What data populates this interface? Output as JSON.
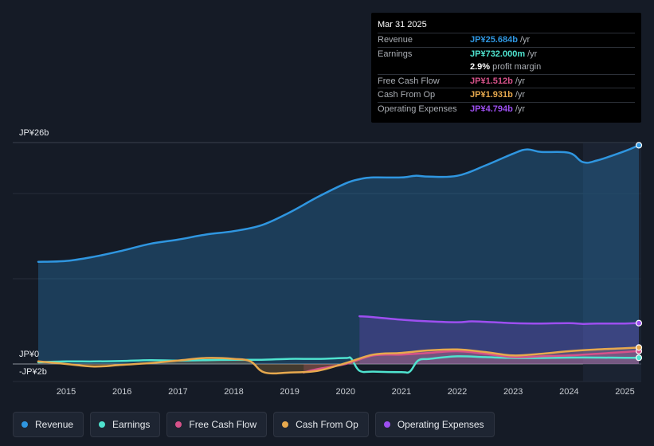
{
  "tooltip": {
    "date": "Mar 31 2025",
    "rows": [
      {
        "label": "Revenue",
        "value": "JP¥25.684b",
        "unit": "/yr",
        "color": "#2f96e0"
      },
      {
        "label": "Earnings",
        "value": "JP¥732.000m",
        "unit": "/yr",
        "color": "#4fe3cf"
      },
      {
        "label": "",
        "value": "2.9%",
        "unit": "profit margin",
        "color": "#ffffff"
      },
      {
        "label": "Free Cash Flow",
        "value": "JP¥1.512b",
        "unit": "/yr",
        "color": "#d6528a"
      },
      {
        "label": "Cash From Op",
        "value": "JP¥1.931b",
        "unit": "/yr",
        "color": "#e7a94e"
      },
      {
        "label": "Operating Expenses",
        "value": "JP¥4.794b",
        "unit": "/yr",
        "color": "#9d4ff0"
      }
    ]
  },
  "legend": [
    {
      "label": "Revenue",
      "color": "#2f96e0"
    },
    {
      "label": "Earnings",
      "color": "#4fe3cf"
    },
    {
      "label": "Free Cash Flow",
      "color": "#d6528a"
    },
    {
      "label": "Cash From Op",
      "color": "#e7a94e"
    },
    {
      "label": "Operating Expenses",
      "color": "#9d4ff0"
    }
  ],
  "chart_data": {
    "type": "area",
    "title": "",
    "y_tick_labels": [
      "JP¥26b",
      "JP¥0",
      "-JP¥2b"
    ],
    "ylim": [
      -2,
      26
    ],
    "xlim": [
      2014.5,
      2025.25
    ],
    "x_tick_labels": [
      "2015",
      "2016",
      "2017",
      "2018",
      "2019",
      "2020",
      "2021",
      "2022",
      "2023",
      "2024",
      "2025"
    ],
    "x_ticks": [
      2015,
      2016,
      2017,
      2018,
      2019,
      2020,
      2021,
      2022,
      2023,
      2024,
      2025
    ],
    "highlight_start": 2024.25,
    "series": [
      {
        "name": "Revenue",
        "color": "#2f96e0",
        "fill": true,
        "end_marker": true,
        "x": [
          2014.5,
          2015.0,
          2015.5,
          2016.0,
          2016.5,
          2017.0,
          2017.5,
          2018.0,
          2018.5,
          2019.0,
          2019.5,
          2020.0,
          2020.25,
          2020.5,
          2021.0,
          2021.25,
          2021.5,
          2022.0,
          2022.5,
          2023.0,
          2023.25,
          2023.5,
          2024.0,
          2024.25,
          2024.5,
          2025.0,
          2025.25
        ],
        "y": [
          12.0,
          12.1,
          12.6,
          13.3,
          14.1,
          14.6,
          15.2,
          15.6,
          16.3,
          17.8,
          19.6,
          21.2,
          21.7,
          21.9,
          21.9,
          22.1,
          22.0,
          22.1,
          23.3,
          24.7,
          25.2,
          24.9,
          24.8,
          23.7,
          23.9,
          25.0,
          25.684
        ]
      },
      {
        "name": "Earnings",
        "color": "#4fe3cf",
        "fill": false,
        "end_marker": true,
        "x": [
          2014.5,
          2015.0,
          2015.5,
          2016.0,
          2016.5,
          2017.0,
          2017.5,
          2018.0,
          2018.5,
          2019.0,
          2019.5,
          2020.0,
          2020.1,
          2020.25,
          2020.5,
          2021.0,
          2021.15,
          2021.3,
          2021.5,
          2022.0,
          2022.5,
          2023.0,
          2023.5,
          2024.0,
          2024.5,
          2025.0,
          2025.25
        ],
        "y": [
          0.2,
          0.3,
          0.3,
          0.35,
          0.45,
          0.4,
          0.45,
          0.5,
          0.5,
          0.6,
          0.6,
          0.7,
          0.65,
          -0.8,
          -0.9,
          -0.95,
          -0.9,
          0.4,
          0.6,
          0.9,
          0.8,
          0.7,
          0.7,
          0.75,
          0.75,
          0.73,
          0.732
        ]
      },
      {
        "name": "Free Cash Flow",
        "color": "#d6528a",
        "fill": true,
        "end_marker": true,
        "x": [
          2019.25,
          2019.5,
          2020.0,
          2020.5,
          2021.0,
          2021.5,
          2022.0,
          2022.5,
          2023.0,
          2023.5,
          2024.0,
          2024.5,
          2025.0,
          2025.25
        ],
        "y": [
          -1.0,
          -0.6,
          0.0,
          1.0,
          1.1,
          1.3,
          1.5,
          1.2,
          0.8,
          0.9,
          1.0,
          1.2,
          1.4,
          1.512
        ]
      },
      {
        "name": "Cash From Op",
        "color": "#e7a94e",
        "fill": true,
        "end_marker": true,
        "x": [
          2014.5,
          2015.0,
          2015.5,
          2016.0,
          2016.5,
          2017.0,
          2017.5,
          2018.0,
          2018.3,
          2018.55,
          2019.0,
          2019.5,
          2020.0,
          2020.5,
          2021.0,
          2021.5,
          2022.0,
          2022.5,
          2023.0,
          2023.5,
          2024.0,
          2024.5,
          2025.0,
          2025.25
        ],
        "y": [
          0.3,
          0.0,
          -0.3,
          -0.1,
          0.1,
          0.4,
          0.7,
          0.6,
          0.3,
          -1.0,
          -1.0,
          -0.8,
          0.1,
          1.1,
          1.3,
          1.6,
          1.7,
          1.4,
          1.0,
          1.2,
          1.5,
          1.7,
          1.85,
          1.931
        ]
      },
      {
        "name": "Operating Expenses",
        "color": "#9d4ff0",
        "fill": true,
        "end_marker": true,
        "x": [
          2020.25,
          2020.5,
          2021.0,
          2021.5,
          2022.0,
          2022.25,
          2022.5,
          2023.0,
          2023.5,
          2024.0,
          2024.25,
          2024.5,
          2025.0,
          2025.25
        ],
        "y": [
          5.6,
          5.5,
          5.2,
          5.0,
          4.9,
          5.0,
          4.95,
          4.8,
          4.75,
          4.8,
          4.7,
          4.75,
          4.75,
          4.794
        ]
      }
    ]
  }
}
